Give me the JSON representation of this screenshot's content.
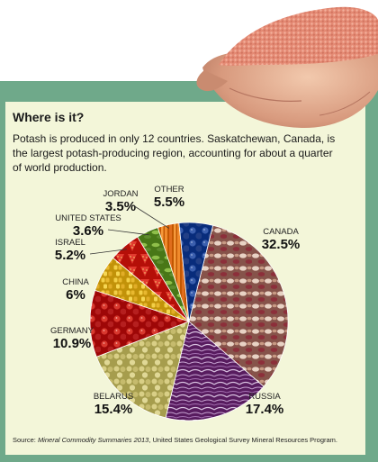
{
  "heading": "Where is it?",
  "intro": "Potash is produced in only 12 countries. Saskatchewan, Canada, is the largest potash-producing region, accounting for about a quarter of world production.",
  "source": {
    "prefix": "Source: ",
    "title": "Mineral Commodity Summaries 2013",
    "suffix": ", United States Geological Survey Mineral Resources Program."
  },
  "colors": {
    "band": "#6fa98a",
    "panel": "#f3f6d9",
    "potash": "#e9927b"
  },
  "chart_data": {
    "type": "pie",
    "title": "",
    "slices": [
      {
        "label": "CANADA",
        "value": 32.5,
        "display": "32.5%",
        "color": "#a9766d",
        "texture": "beans"
      },
      {
        "label": "RUSSIA",
        "value": 17.4,
        "display": "17.4%",
        "color": "#7b3f82",
        "texture": "cabbage"
      },
      {
        "label": "BELARUS",
        "value": 15.4,
        "display": "15.4%",
        "color": "#c9c070",
        "texture": "peas"
      },
      {
        "label": "GERMANY",
        "value": 10.9,
        "display": "10.9%",
        "color": "#c12a2a",
        "texture": "tomatoes"
      },
      {
        "label": "CHINA",
        "value": 6,
        "display": "6%",
        "color": "#e5b52c",
        "texture": "corn"
      },
      {
        "label": "ISRAEL",
        "value": 5.2,
        "display": "5.2%",
        "color": "#d8322b",
        "texture": "strawberries"
      },
      {
        "label": "UNITED STATES",
        "value": 3.6,
        "display": "3.6%",
        "color": "#6b9a3a",
        "texture": "greens"
      },
      {
        "label": "JORDAN",
        "value": 3.5,
        "display": "3.5%",
        "color": "#e57a25",
        "texture": "carrots"
      },
      {
        "label": "OTHER",
        "value": 5.5,
        "display": "5.5%",
        "color": "#2b4f9e",
        "texture": "blueberries"
      }
    ]
  }
}
